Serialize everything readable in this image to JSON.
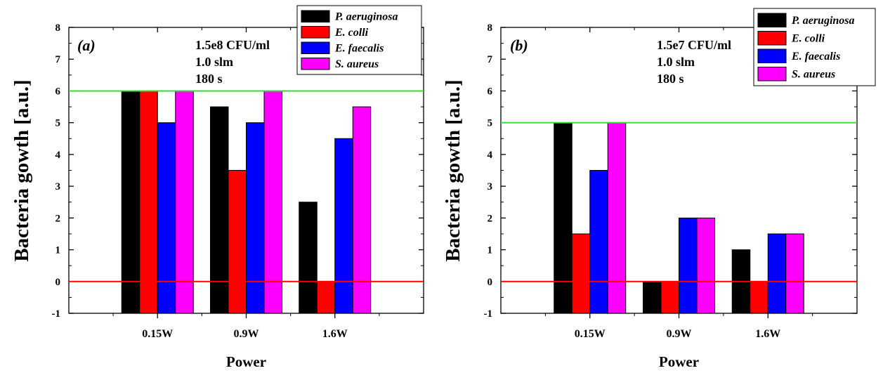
{
  "colors": {
    "P. aeruginosa": "#000000",
    "E. colli": "#ff0000",
    "E. faecalis": "#0000ff",
    "S. aureus": "#ff00ff",
    "upper_ref_line": "#33dd33",
    "zero_ref_line": "#ff0000"
  },
  "chart_data": [
    {
      "type": "bar",
      "panel_label": "(a)",
      "annotation": [
        "1.5e8 CFU/ml",
        "1.0 slm",
        "180 s"
      ],
      "categories": [
        "0.15W",
        "0.9W",
        "1.6W"
      ],
      "series": [
        {
          "name": "P. aeruginosa",
          "values": [
            6,
            5.5,
            2.5
          ]
        },
        {
          "name": "E. colli",
          "values": [
            6,
            3.5,
            0
          ]
        },
        {
          "name": "E. faecalis",
          "values": [
            5,
            5,
            4.5
          ]
        },
        {
          "name": "S. aureus",
          "values": [
            6,
            6,
            5.5
          ]
        }
      ],
      "xlabel": "Power",
      "ylabel": "Bacteria gowth [a.u.]",
      "ylim": [
        -1,
        8
      ],
      "yticks": [
        "-1",
        "0",
        "1",
        "2",
        "3",
        "4",
        "5",
        "6",
        "7",
        "8"
      ],
      "reference_lines": [
        6,
        0
      ],
      "legend_position": "top-right",
      "grid": false
    },
    {
      "type": "bar",
      "panel_label": "(b)",
      "annotation": [
        "1.5e7 CFU/ml",
        "1.0 slm",
        "180 s"
      ],
      "categories": [
        "0.15W",
        "0.9W",
        "1.6W"
      ],
      "series": [
        {
          "name": "P. aeruginosa",
          "values": [
            5,
            0,
            1
          ]
        },
        {
          "name": "E. colli",
          "values": [
            1.5,
            0,
            0
          ]
        },
        {
          "name": "E. faecalis",
          "values": [
            3.5,
            2,
            1.5
          ]
        },
        {
          "name": "S. aureus",
          "values": [
            5,
            2,
            1.5
          ]
        }
      ],
      "xlabel": "Power",
      "ylabel": "Bacteria gowth [a.u.]",
      "ylim": [
        -1,
        8
      ],
      "yticks": [
        "-1",
        "0",
        "1",
        "2",
        "3",
        "4",
        "5",
        "6",
        "7",
        "8"
      ],
      "reference_lines": [
        5,
        0
      ],
      "legend_position": "top-right",
      "grid": false
    }
  ]
}
